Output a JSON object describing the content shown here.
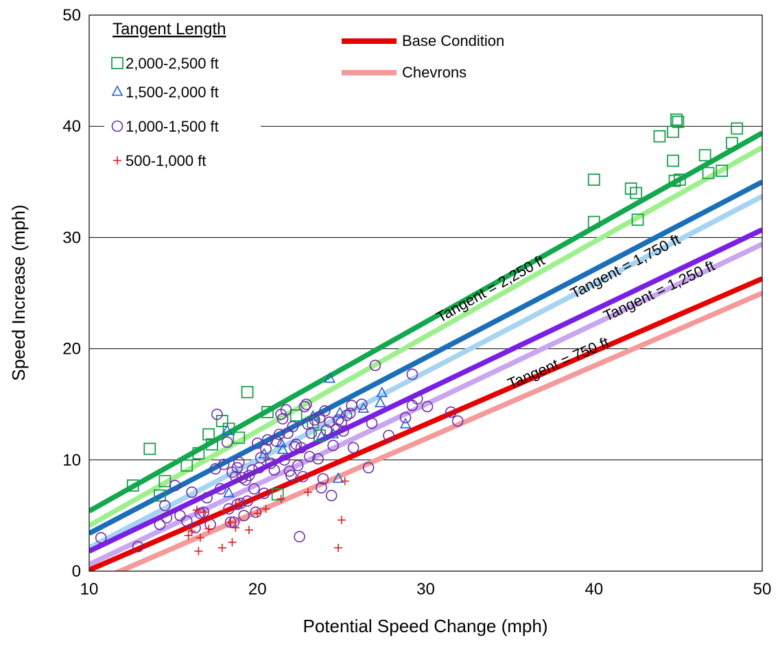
{
  "chart_data": {
    "type": "scatter",
    "xlabel": "Potential Speed Change (mph)",
    "ylabel": "Speed Increase (mph)",
    "xlim": [
      10,
      50
    ],
    "ylim": [
      0,
      50
    ],
    "x_ticks": [
      10,
      20,
      30,
      40,
      50
    ],
    "y_ticks": [
      0,
      10,
      20,
      30,
      40,
      50
    ],
    "grid": "horizontal",
    "marker_legend": {
      "title": "Tangent Length",
      "placement": "top-left",
      "entries": [
        {
          "label": "2,000-2,500 ft",
          "marker": "square",
          "color": "#1a9e4a"
        },
        {
          "label": "1,500-2,000 ft",
          "marker": "triangle",
          "color": "#1f5fd6"
        },
        {
          "label": "1,000-1,500 ft",
          "marker": "circle",
          "color": "#6f2da8"
        },
        {
          "label": "500-1,000 ft",
          "marker": "plus",
          "color": "#e01b1b"
        }
      ]
    },
    "line_legend": {
      "placement": "top-center",
      "entries": [
        {
          "label": "Base Condition",
          "color": "#e60000"
        },
        {
          "label": "Chevrons",
          "color": "#f49a9a"
        }
      ]
    },
    "lines": [
      {
        "group": "Tangent = 2,250 ft",
        "condition": "Base Condition",
        "color": "#12a84f",
        "x": [
          10,
          50
        ],
        "y": [
          5.4,
          39.4
        ]
      },
      {
        "group": "Tangent = 2,250 ft",
        "condition": "Chevrons",
        "color": "#9ef08e",
        "x": [
          10,
          50
        ],
        "y": [
          4.1,
          38.1
        ]
      },
      {
        "group": "Tangent = 1,750 ft",
        "condition": "Base Condition",
        "color": "#1a6fb8",
        "x": [
          10,
          50
        ],
        "y": [
          3.4,
          35.0
        ]
      },
      {
        "group": "Tangent = 1,750 ft",
        "condition": "Chevrons",
        "color": "#a7d4f2",
        "x": [
          10,
          50
        ],
        "y": [
          2.1,
          33.7
        ]
      },
      {
        "group": "Tangent = 1,250 ft",
        "condition": "Base Condition",
        "color": "#7a1fe6",
        "x": [
          10,
          50
        ],
        "y": [
          1.8,
          30.7
        ]
      },
      {
        "group": "Tangent = 1,250 ft",
        "condition": "Chevrons",
        "color": "#c9a6f0",
        "x": [
          10,
          50
        ],
        "y": [
          0.6,
          29.4
        ]
      },
      {
        "group": "Tangent = 750 ft",
        "condition": "Base Condition",
        "color": "#e60000",
        "x": [
          10,
          50
        ],
        "y": [
          0.1,
          26.3
        ]
      },
      {
        "group": "Tangent = 750 ft",
        "condition": "Chevrons",
        "color": "#f49a9a",
        "x": [
          10,
          50
        ],
        "y": [
          -1.2,
          25.0
        ]
      }
    ],
    "line_annotations": [
      {
        "text": "Tangent = 2,250 ft",
        "x": 34,
        "y": 25.0,
        "slope_line": 0
      },
      {
        "text": "Tangent = 1,750 ft",
        "x": 42,
        "y": 27.0,
        "slope_line": 2
      },
      {
        "text": "Tangent = 1,250 ft",
        "x": 44,
        "y": 24.8,
        "slope_line": 4
      },
      {
        "text": "Tangent = 750 ft",
        "x": 38,
        "y": 18.3,
        "slope_line": 6
      }
    ],
    "series": [
      {
        "name": "2,000-2,500 ft",
        "marker": "square",
        "color": "#1a9e4a",
        "points": [
          [
            12.6,
            7.7
          ],
          [
            13.6,
            11.0
          ],
          [
            14.2,
            6.8
          ],
          [
            14.5,
            8.1
          ],
          [
            15.8,
            9.5
          ],
          [
            16.5,
            10.6
          ],
          [
            17.1,
            12.3
          ],
          [
            17.3,
            11.4
          ],
          [
            17.9,
            13.5
          ],
          [
            18.3,
            12.8
          ],
          [
            18.9,
            12.0
          ],
          [
            19.4,
            16.1
          ],
          [
            20.6,
            14.3
          ],
          [
            21.2,
            6.9
          ],
          [
            22.3,
            14.0
          ],
          [
            23.3,
            13.4
          ],
          [
            23.7,
            12.2
          ],
          [
            40.0,
            35.2
          ],
          [
            40.0,
            31.4
          ],
          [
            42.2,
            34.4
          ],
          [
            42.5,
            34.0
          ],
          [
            42.6,
            31.6
          ],
          [
            43.9,
            39.1
          ],
          [
            44.7,
            39.5
          ],
          [
            44.7,
            36.9
          ],
          [
            44.8,
            35.1
          ],
          [
            44.9,
            40.6
          ],
          [
            45.0,
            40.4
          ],
          [
            45.1,
            35.2
          ],
          [
            46.6,
            37.4
          ],
          [
            46.8,
            35.8
          ],
          [
            47.6,
            36.0
          ],
          [
            48.2,
            38.5
          ],
          [
            48.5,
            39.8
          ]
        ]
      },
      {
        "name": "1,500-2,000 ft",
        "marker": "triangle",
        "color": "#1f5fd6",
        "points": [
          [
            18.2,
            12.6
          ],
          [
            18.3,
            7.0
          ],
          [
            20.4,
            10.5
          ],
          [
            21.4,
            11.5
          ],
          [
            21.5,
            10.9
          ],
          [
            23.3,
            13.9
          ],
          [
            23.8,
            12.1
          ],
          [
            24.3,
            17.3
          ],
          [
            24.5,
            12.3
          ],
          [
            24.8,
            8.3
          ],
          [
            24.9,
            14.2
          ],
          [
            26.3,
            14.6
          ],
          [
            27.3,
            15.1
          ],
          [
            27.4,
            16.0
          ],
          [
            28.8,
            13.2
          ]
        ]
      },
      {
        "name": "1,000-1,500 ft",
        "marker": "circle",
        "color": "#6f2da8",
        "points": [
          [
            10.7,
            3.0
          ],
          [
            12.9,
            2.2
          ],
          [
            14.2,
            4.2
          ],
          [
            14.5,
            5.9
          ],
          [
            14.6,
            4.8
          ],
          [
            15.1,
            7.7
          ],
          [
            15.4,
            5.0
          ],
          [
            15.8,
            4.5
          ],
          [
            16.1,
            7.1
          ],
          [
            16.3,
            3.9
          ],
          [
            16.6,
            5.2
          ],
          [
            16.8,
            5.3
          ],
          [
            17.0,
            6.6
          ],
          [
            17.2,
            4.2
          ],
          [
            17.5,
            9.2
          ],
          [
            17.6,
            14.1
          ],
          [
            17.8,
            7.4
          ],
          [
            18.0,
            9.6
          ],
          [
            18.2,
            11.6
          ],
          [
            18.3,
            5.6
          ],
          [
            18.4,
            4.4
          ],
          [
            18.5,
            8.9
          ],
          [
            18.6,
            4.4
          ],
          [
            18.7,
            8.5
          ],
          [
            18.8,
            6.0
          ],
          [
            18.8,
            9.3
          ],
          [
            18.9,
            9.8
          ],
          [
            19.0,
            6.1
          ],
          [
            19.1,
            8.4
          ],
          [
            19.2,
            5.0
          ],
          [
            19.3,
            8.2
          ],
          [
            19.4,
            6.3
          ],
          [
            19.5,
            8.6
          ],
          [
            19.7,
            9.1
          ],
          [
            19.8,
            7.4
          ],
          [
            19.9,
            5.3
          ],
          [
            20.0,
            11.5
          ],
          [
            20.1,
            9.3
          ],
          [
            20.2,
            10.2
          ],
          [
            20.4,
            7.0
          ],
          [
            20.5,
            11.0
          ],
          [
            20.6,
            11.8
          ],
          [
            20.8,
            9.7
          ],
          [
            21.0,
            9.1
          ],
          [
            21.1,
            11.7
          ],
          [
            21.3,
            12.3
          ],
          [
            21.4,
            14.1
          ],
          [
            21.5,
            13.7
          ],
          [
            21.6,
            10.0
          ],
          [
            21.7,
            14.5
          ],
          [
            21.8,
            12.4
          ],
          [
            21.9,
            9.0
          ],
          [
            22.0,
            8.6
          ],
          [
            22.1,
            13.0
          ],
          [
            22.2,
            11.2
          ],
          [
            22.3,
            11.4
          ],
          [
            22.4,
            9.5
          ],
          [
            22.5,
            3.1
          ],
          [
            22.6,
            11.1
          ],
          [
            22.7,
            8.5
          ],
          [
            22.8,
            14.8
          ],
          [
            22.9,
            15.0
          ],
          [
            23.0,
            13.2
          ],
          [
            23.1,
            10.3
          ],
          [
            23.2,
            12.4
          ],
          [
            23.4,
            13.6
          ],
          [
            23.6,
            10.1
          ],
          [
            23.7,
            13.8
          ],
          [
            23.8,
            7.5
          ],
          [
            23.9,
            8.3
          ],
          [
            24.0,
            14.4
          ],
          [
            24.1,
            12.7
          ],
          [
            24.3,
            13.4
          ],
          [
            24.4,
            6.8
          ],
          [
            24.5,
            11.3
          ],
          [
            24.7,
            12.8
          ],
          [
            24.8,
            13.6
          ],
          [
            25.0,
            13.4
          ],
          [
            25.1,
            12.6
          ],
          [
            25.3,
            14.0
          ],
          [
            25.5,
            14.2
          ],
          [
            25.6,
            14.9
          ],
          [
            25.7,
            11.1
          ],
          [
            26.2,
            15.0
          ],
          [
            26.6,
            9.3
          ],
          [
            26.8,
            13.3
          ],
          [
            27.0,
            18.5
          ],
          [
            27.8,
            12.2
          ],
          [
            28.8,
            13.8
          ],
          [
            29.2,
            14.9
          ],
          [
            29.2,
            17.7
          ],
          [
            29.5,
            15.5
          ],
          [
            30.1,
            14.8
          ],
          [
            31.5,
            14.3
          ],
          [
            31.9,
            13.5
          ]
        ]
      },
      {
        "name": "500-1,000 ft",
        "marker": "plus",
        "color": "#e01b1b",
        "points": [
          [
            15.9,
            3.2
          ],
          [
            16.1,
            3.6
          ],
          [
            16.4,
            5.5
          ],
          [
            16.5,
            1.8
          ],
          [
            16.6,
            3.0
          ],
          [
            16.8,
            5.3
          ],
          [
            17.1,
            3.8
          ],
          [
            17.9,
            2.1
          ],
          [
            18.0,
            5.4
          ],
          [
            18.4,
            4.4
          ],
          [
            18.5,
            2.6
          ],
          [
            18.7,
            3.9
          ],
          [
            18.9,
            6.1
          ],
          [
            19.5,
            3.7
          ],
          [
            20.0,
            5.2
          ],
          [
            20.5,
            5.6
          ],
          [
            21.4,
            6.5
          ],
          [
            23.0,
            7.1
          ],
          [
            24.8,
            2.1
          ],
          [
            25.0,
            4.6
          ],
          [
            25.2,
            8.1
          ]
        ]
      }
    ]
  }
}
